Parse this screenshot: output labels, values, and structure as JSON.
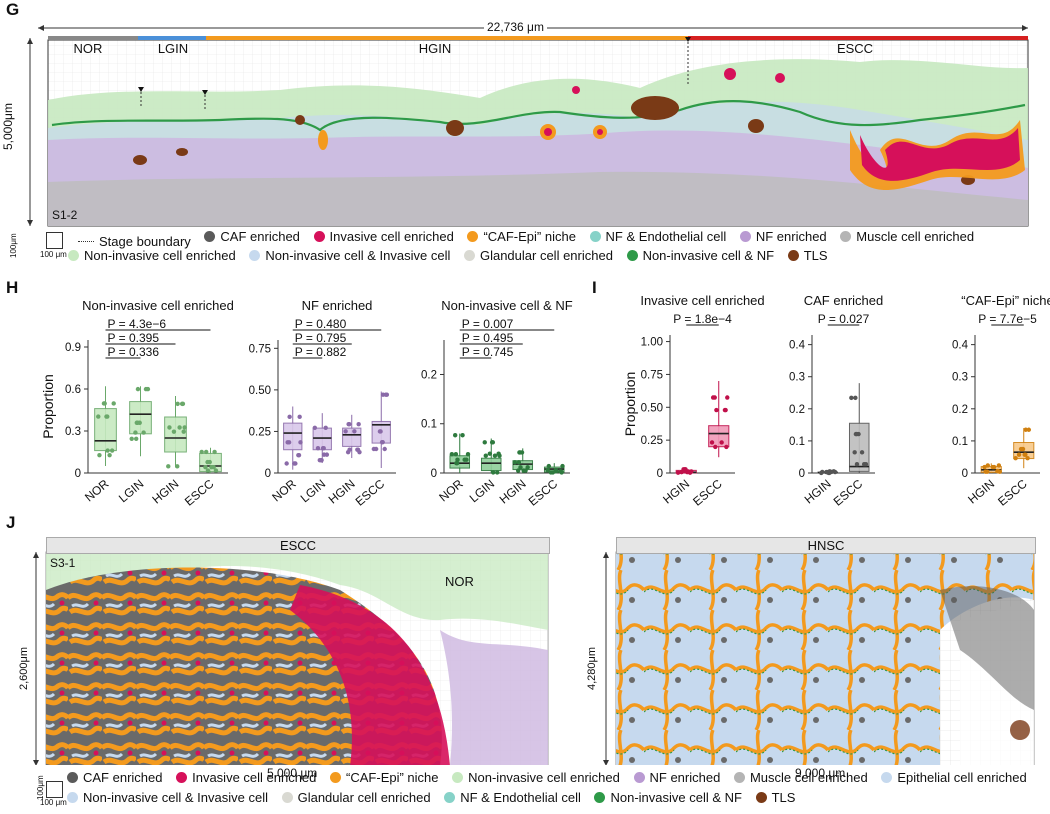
{
  "panels": {
    "G": "G",
    "H": "H",
    "I": "I",
    "J": "J"
  },
  "colors": {
    "caf": "#5a5a5a",
    "invasive": "#d6105a",
    "cafepi": "#f39a1e",
    "nf_endo": "#86d2c8",
    "nf": "#b99ad2",
    "muscle": "#b4b4b4",
    "noninv": "#c7e9c0",
    "noninv_inv": "#c6d9ee",
    "glandular": "#d9d9d2",
    "noninv_nf": "#2e9a48",
    "tls": "#7a3a16",
    "epithelial": "#c6d9ee"
  },
  "g": {
    "width_label": "22,736 μm",
    "height_label": "5,000μm",
    "sample": "S1-2",
    "stages": [
      {
        "name": "NOR",
        "color": "#888888"
      },
      {
        "name": "LGIN",
        "color": "#4a90d9"
      },
      {
        "name": "HGIN",
        "color": "#f39a1e"
      },
      {
        "name": "ESCC",
        "color": "#d62020"
      }
    ],
    "scale_top": "100 μm",
    "scale_side": "100μm",
    "legend_row1": [
      "Stage boundary",
      "CAF enriched",
      "Invasive cell enriched",
      "“CAF-Epi” niche",
      "NF & Endothelial cell",
      "NF enriched",
      "Muscle cell enriched"
    ],
    "legend_row2": [
      "Non-invasive cell enriched",
      "Non-invasive cell & Invasive cell",
      "Glandular cell enriched",
      "Non-invasive cell & NF",
      "TLS"
    ]
  },
  "chart_data": [
    {
      "type": "box",
      "title": "Non-invasive cell enriched",
      "ylabel": "Proportion",
      "categories": [
        "NOR",
        "LGIN",
        "HGIN",
        "ESCC"
      ],
      "ylim": [
        0,
        0.95
      ],
      "yticks": [
        "0",
        "0.3",
        "0.6",
        "0.9"
      ],
      "yticks_values": [
        0,
        0.3,
        0.6,
        0.9
      ],
      "color": "#c7e9c0",
      "edge": "#6aa86a",
      "boxes": [
        {
          "q1": 0.16,
          "med": 0.23,
          "q3": 0.46,
          "lo": 0.05,
          "hi": 0.62
        },
        {
          "q1": 0.28,
          "med": 0.42,
          "q3": 0.51,
          "lo": 0.12,
          "hi": 0.62
        },
        {
          "q1": 0.15,
          "med": 0.25,
          "q3": 0.4,
          "lo": 0.04,
          "hi": 0.55
        },
        {
          "q1": 0.01,
          "med": 0.05,
          "q3": 0.14,
          "lo": 0,
          "hi": 0.18
        }
      ],
      "pvalues": [
        "P = 4.3e−6",
        "P = 0.395",
        "P = 0.336"
      ]
    },
    {
      "type": "box",
      "title": "NF enriched",
      "ylabel": "",
      "categories": [
        "NOR",
        "LGIN",
        "HGIN",
        "ESCC"
      ],
      "ylim": [
        0,
        0.8
      ],
      "yticks": [
        "0",
        "0.25",
        "0.50",
        "0.75"
      ],
      "yticks_values": [
        0,
        0.25,
        0.5,
        0.75
      ],
      "color": "#d9c8ea",
      "edge": "#8a6aa8",
      "boxes": [
        {
          "q1": 0.14,
          "med": 0.24,
          "q3": 0.3,
          "lo": 0.02,
          "hi": 0.4
        },
        {
          "q1": 0.14,
          "med": 0.21,
          "q3": 0.27,
          "lo": 0.06,
          "hi": 0.36
        },
        {
          "q1": 0.16,
          "med": 0.23,
          "q3": 0.27,
          "lo": 0.09,
          "hi": 0.35
        },
        {
          "q1": 0.18,
          "med": 0.29,
          "q3": 0.31,
          "lo": 0.03,
          "hi": 0.49
        }
      ],
      "pvalues": [
        "P = 0.480",
        "P = 0.795",
        "P = 0.882"
      ]
    },
    {
      "type": "box",
      "title": "Non-invasive cell & NF",
      "ylabel": "",
      "categories": [
        "NOR",
        "LGIN",
        "HGIN",
        "ESCC"
      ],
      "ylim": [
        0,
        0.27
      ],
      "yticks": [
        "0",
        "0.1",
        "0.2"
      ],
      "yticks_values": [
        0,
        0.1,
        0.2
      ],
      "color": "#8fcf9a",
      "edge": "#2e7a3e",
      "boxes": [
        {
          "q1": 0.01,
          "med": 0.02,
          "q3": 0.035,
          "lo": 0,
          "hi": 0.08
        },
        {
          "q1": 0.005,
          "med": 0.02,
          "q3": 0.03,
          "lo": 0,
          "hi": 0.07
        },
        {
          "q1": 0.007,
          "med": 0.018,
          "q3": 0.025,
          "lo": 0,
          "hi": 0.05
        },
        {
          "q1": 0.002,
          "med": 0.008,
          "q3": 0.012,
          "lo": 0,
          "hi": 0.02
        }
      ],
      "pvalues": [
        "P = 0.007",
        "P = 0.495",
        "P = 0.745"
      ]
    },
    {
      "type": "box",
      "title": "Invasive cell enriched",
      "ylabel": "Proportion",
      "categories": [
        "HGIN",
        "ESCC"
      ],
      "ylim": [
        0,
        1.05
      ],
      "yticks": [
        "0",
        "0.25",
        "0.50",
        "0.75",
        "1.00"
      ],
      "yticks_values": [
        0,
        0.25,
        0.5,
        0.75,
        1.0
      ],
      "color": "#f09ab8",
      "edge": "#c0104a",
      "boxes": [
        {
          "q1": 0,
          "med": 0.005,
          "q3": 0.02,
          "lo": 0,
          "hi": 0.04
        },
        {
          "q1": 0.2,
          "med": 0.3,
          "q3": 0.36,
          "lo": 0.12,
          "hi": 0.7
        }
      ],
      "pvalues": [
        "P = 1.8e−4"
      ]
    },
    {
      "type": "box",
      "title": "CAF enriched",
      "ylabel": "",
      "categories": [
        "HGIN",
        "ESCC"
      ],
      "ylim": [
        0,
        0.43
      ],
      "yticks": [
        "0",
        "0.1",
        "0.2",
        "0.3",
        "0.4"
      ],
      "yticks_values": [
        0,
        0.1,
        0.2,
        0.3,
        0.4
      ],
      "color": "#bdbdbd",
      "edge": "#555555",
      "boxes": [
        {
          "q1": 0,
          "med": 0.001,
          "q3": 0.003,
          "lo": 0,
          "hi": 0.006
        },
        {
          "q1": 0.005,
          "med": 0.02,
          "q3": 0.155,
          "lo": 0,
          "hi": 0.28
        }
      ],
      "pvalues": [
        "P = 0.027"
      ]
    },
    {
      "type": "box",
      "title": "“CAF-Epi” niche",
      "ylabel": "",
      "categories": [
        "HGIN",
        "ESCC"
      ],
      "ylim": [
        0,
        0.43
      ],
      "yticks": [
        "0",
        "0.1",
        "0.2",
        "0.3",
        "0.4"
      ],
      "yticks_values": [
        0,
        0.1,
        0.2,
        0.3,
        0.4
      ],
      "color": "#f8c98a",
      "edge": "#d08010",
      "boxes": [
        {
          "q1": 0.002,
          "med": 0.01,
          "q3": 0.02,
          "lo": 0,
          "hi": 0.03
        },
        {
          "q1": 0.045,
          "med": 0.065,
          "q3": 0.095,
          "lo": 0.015,
          "hi": 0.14
        }
      ],
      "pvalues": [
        "P = 7.7e−5"
      ]
    }
  ],
  "j": {
    "left": {
      "header": "ESCC",
      "sample": "S3-1",
      "region": "NOR",
      "height_label": "2,600μm",
      "width_label": "5,000 μm"
    },
    "right": {
      "header": "HNSC",
      "height_label": "4,280μm",
      "width_label": "9,000 μm"
    },
    "scale_top": "100 μm",
    "scale_side": "100μm",
    "legend_row1": [
      "CAF enriched",
      "Invasive cell enriched",
      "“CAF-Epi” niche",
      "Non-invasive cell enriched",
      "NF enriched",
      "Muscle cell enriched",
      "Epithelial cell enriched"
    ],
    "legend_row2": [
      "Non-invasive cell & Invasive cell",
      "Glandular cell enriched",
      "NF & Endothelial cell",
      "Non-invasive cell & NF",
      "TLS"
    ]
  }
}
